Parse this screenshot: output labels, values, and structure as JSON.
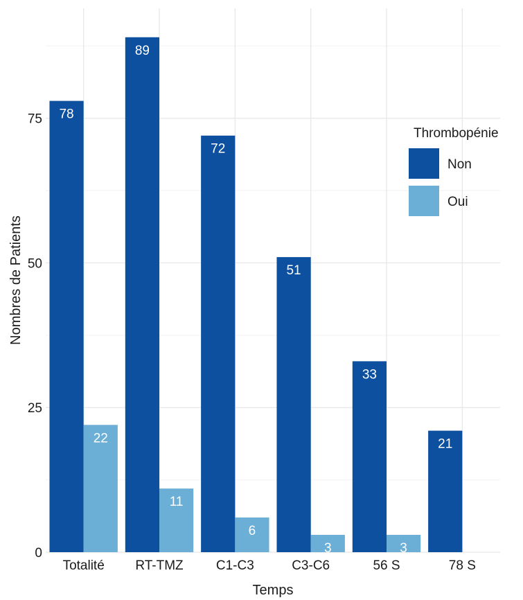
{
  "chart_data": {
    "type": "bar",
    "categories": [
      "Totalité",
      "RT-TMZ",
      "C1-C3",
      "C3-C6",
      "56 S",
      "78 S"
    ],
    "series": [
      {
        "name": "Non",
        "values": [
          78,
          89,
          72,
          51,
          33,
          21
        ],
        "color": "#0d50a0"
      },
      {
        "name": "Oui",
        "values": [
          22,
          11,
          6,
          3,
          3,
          null
        ],
        "color": "#6baed6"
      }
    ],
    "xlabel": "Temps",
    "ylabel": "Nombres de Patients",
    "ylim": [
      0,
      94
    ],
    "yticks": [
      0,
      25,
      50,
      75
    ],
    "grid": true,
    "legend": {
      "title": "Thrombopénie",
      "position": "right"
    }
  }
}
